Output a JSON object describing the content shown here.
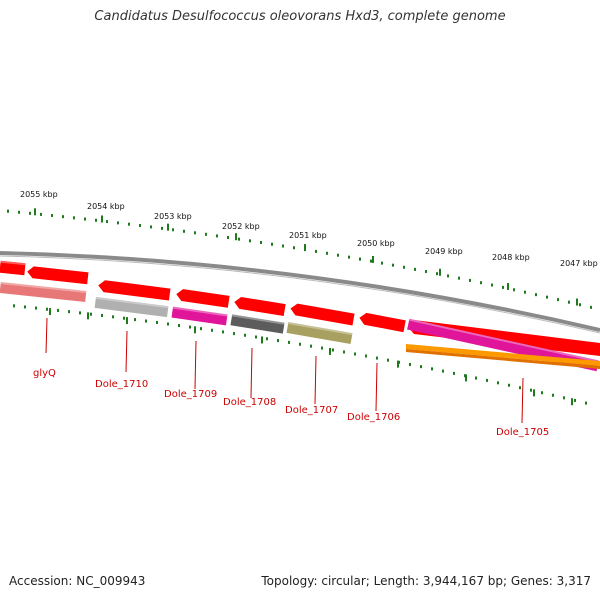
{
  "title": "Candidatus Desulfococcus oleovorans Hxd3, complete genome",
  "footer": {
    "accession": "Accession: NC_009943",
    "stats": "Topology: circular; Length: 3,944,167 bp; Genes: 3,317"
  },
  "scale_labels": [
    "2055 kbp",
    "2054 kbp",
    "2053 kbp",
    "2052 kbp",
    "2051 kbp",
    "2050 kbp",
    "2049 kbp",
    "2048 kbp",
    "2047 kbp"
  ],
  "genes": [
    {
      "name": "glyQ",
      "color": "#e87878"
    },
    {
      "name": "Dole_1710",
      "color": "#b0b0b0"
    },
    {
      "name": "Dole_1709",
      "color": "#e0159a"
    },
    {
      "name": "Dole_1708",
      "color": "#5c5c5c"
    },
    {
      "name": "Dole_1707",
      "color": "#a8a060"
    },
    {
      "name": "Dole_1706",
      "color": "#ff0000"
    },
    {
      "name": "Dole_1705",
      "color": "#e0159a"
    }
  ],
  "colors": {
    "forward_strand": "#ff0000",
    "backbone": "#8a8a8a",
    "tick": "#1d7a1d",
    "label": "#cc0000",
    "orange": "#ff9900"
  }
}
